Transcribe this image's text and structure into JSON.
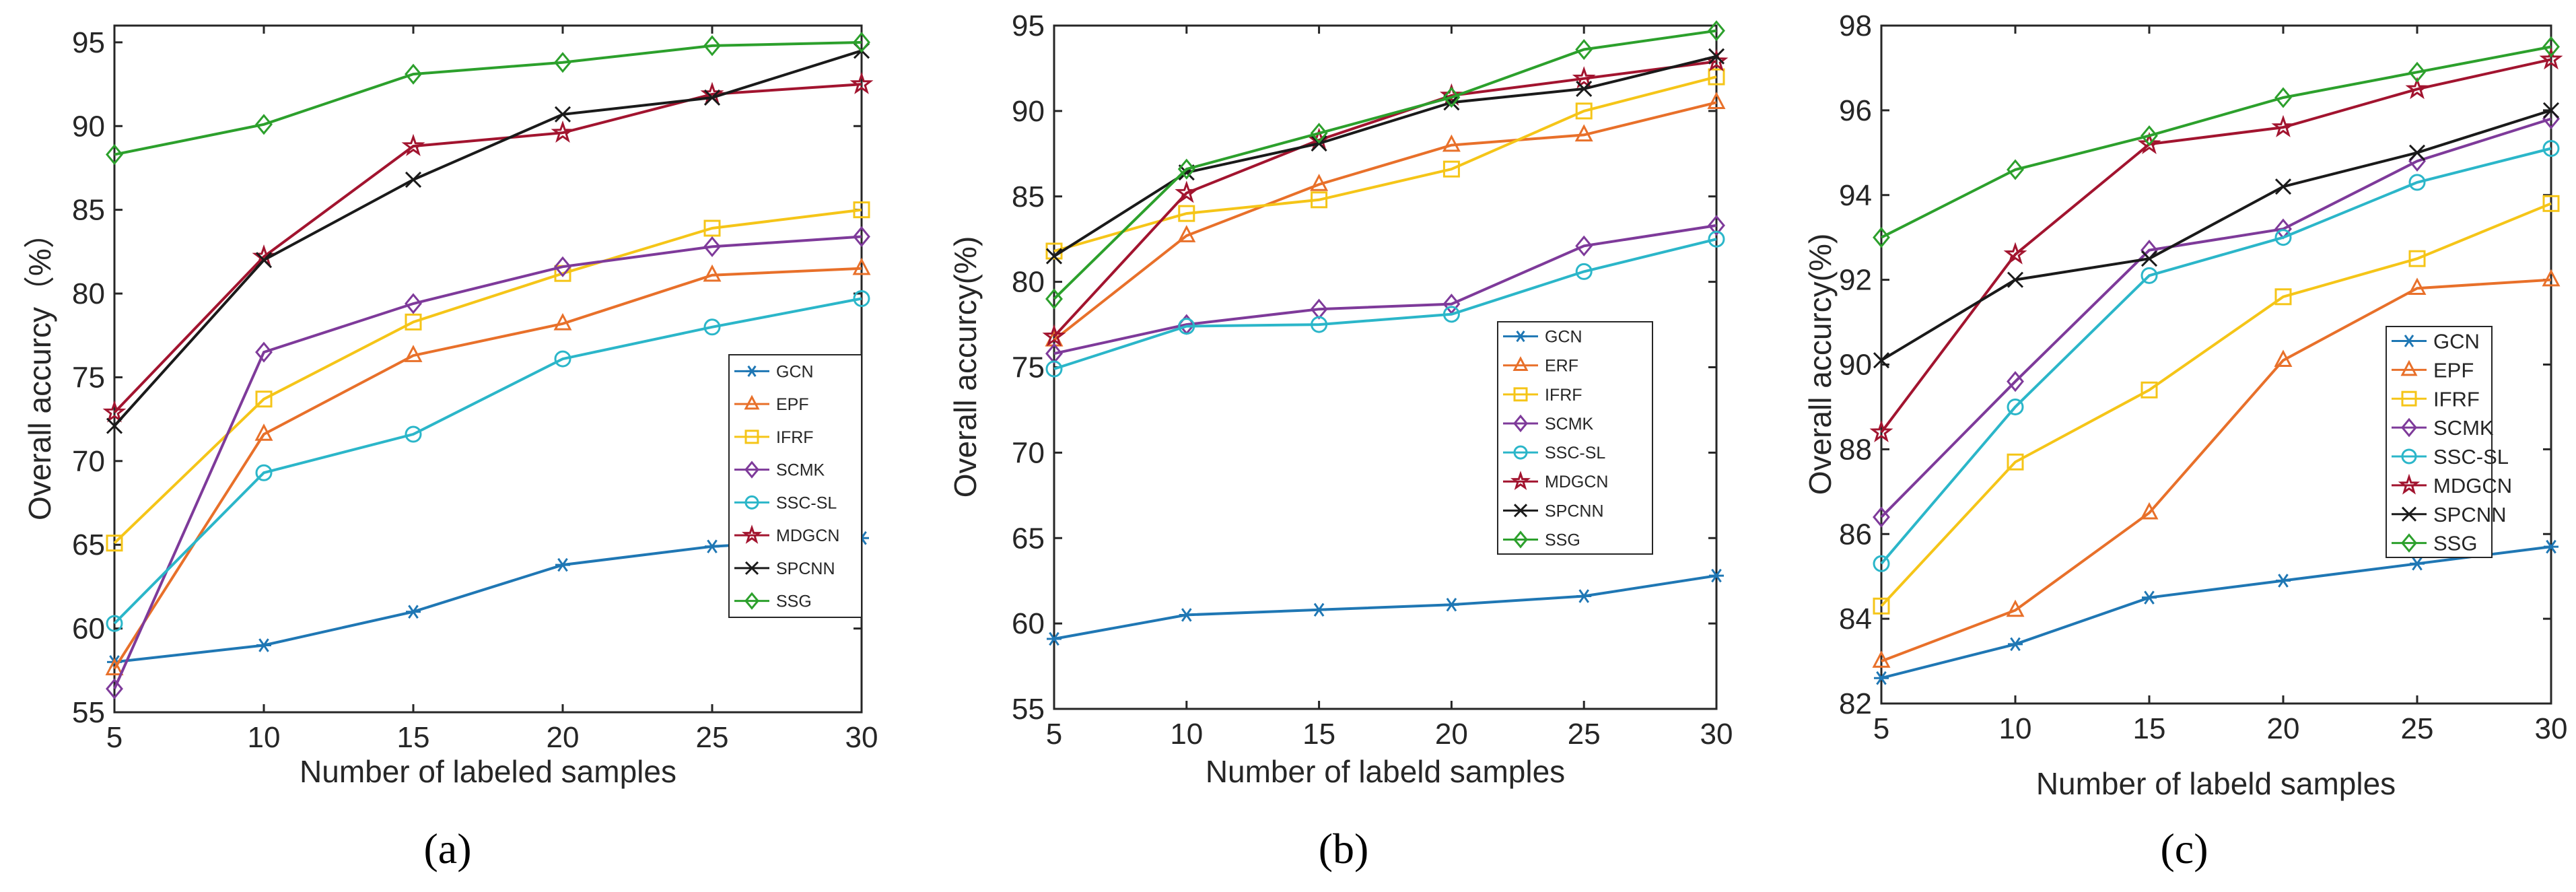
{
  "palette": {
    "GCN": "#1f77b4",
    "EPF": "#e8702a",
    "ERF": "#e8702a",
    "IFRF": "#f5c518",
    "SCMK": "#7e3a9a",
    "SSC-SL": "#2bb6c9",
    "MDGCN": "#a2142f",
    "SPCNN": "#1a1a1a",
    "SSG": "#2ca02c"
  },
  "markers": {
    "GCN": "asterisk",
    "EPF": "triangle",
    "ERF": "triangle",
    "IFRF": "square",
    "SCMK": "diamond",
    "SSC-SL": "circle",
    "MDGCN": "star",
    "SPCNN": "cross",
    "SSG": "diamond"
  },
  "chart_data": [
    {
      "panel": "a",
      "caption": "(a)",
      "type": "line",
      "xlabel": "Number of labeled samples",
      "ylabel": "Overall accurcy（%）",
      "xlim": [
        5,
        30
      ],
      "ylim": [
        55,
        96
      ],
      "xticks": [
        5,
        10,
        15,
        20,
        25,
        30
      ],
      "yticks": [
        55,
        60,
        65,
        70,
        75,
        80,
        85,
        90,
        95
      ],
      "legend_position": "bottom-right",
      "x": [
        5,
        10,
        15,
        20,
        25,
        30
      ],
      "series": [
        {
          "name": "GCN",
          "values": [
            58.0,
            59.0,
            61.0,
            63.8,
            64.9,
            65.4
          ]
        },
        {
          "name": "EPF",
          "values": [
            57.6,
            71.6,
            76.3,
            78.2,
            81.1,
            81.5
          ]
        },
        {
          "name": "IFRF",
          "values": [
            65.1,
            73.7,
            78.3,
            81.2,
            83.9,
            85.0
          ]
        },
        {
          "name": "SCMK",
          "values": [
            56.4,
            76.5,
            79.4,
            81.6,
            82.8,
            83.4
          ]
        },
        {
          "name": "SSC-SL",
          "values": [
            60.3,
            69.3,
            71.6,
            76.1,
            78.0,
            79.7
          ]
        },
        {
          "name": "MDGCN",
          "values": [
            72.9,
            82.2,
            88.8,
            89.6,
            91.9,
            92.5
          ]
        },
        {
          "name": "SPCNN",
          "values": [
            72.1,
            82.0,
            86.8,
            90.7,
            91.7,
            94.5
          ]
        },
        {
          "name": "SSG",
          "values": [
            88.3,
            90.1,
            93.1,
            93.8,
            94.8,
            95.0
          ]
        }
      ]
    },
    {
      "panel": "b",
      "caption": "(b)",
      "type": "line",
      "xlabel": "Number of labeld samples",
      "ylabel": "Overall accurcy(%)",
      "xlim": [
        5,
        30
      ],
      "ylim": [
        55,
        95
      ],
      "xticks": [
        5,
        10,
        15,
        20,
        25,
        30
      ],
      "yticks": [
        55,
        60,
        65,
        70,
        75,
        80,
        85,
        90,
        95
      ],
      "legend_position": "bottom-right",
      "x": [
        5,
        10,
        15,
        20,
        25,
        30
      ],
      "series": [
        {
          "name": "GCN",
          "values": [
            59.1,
            60.5,
            60.8,
            61.1,
            61.6,
            62.8
          ]
        },
        {
          "name": "ERF",
          "values": [
            76.6,
            82.7,
            85.7,
            88.0,
            88.6,
            90.5
          ]
        },
        {
          "name": "IFRF",
          "values": [
            81.8,
            84.0,
            84.8,
            86.6,
            90.0,
            92.0
          ]
        },
        {
          "name": "SCMK",
          "values": [
            75.8,
            77.5,
            78.4,
            78.7,
            82.1,
            83.3
          ]
        },
        {
          "name": "SSC-SL",
          "values": [
            74.9,
            77.4,
            77.5,
            78.1,
            80.6,
            82.5
          ]
        },
        {
          "name": "MDGCN",
          "values": [
            76.8,
            85.2,
            88.3,
            90.9,
            91.9,
            92.9
          ]
        },
        {
          "name": "SPCNN",
          "values": [
            81.5,
            86.4,
            88.1,
            90.5,
            91.3,
            93.2
          ]
        },
        {
          "name": "SSG",
          "values": [
            79.0,
            86.6,
            88.7,
            90.8,
            93.6,
            94.7
          ]
        }
      ]
    },
    {
      "panel": "c",
      "caption": "(c)",
      "type": "line",
      "xlabel": "Number of labeld samples",
      "ylabel": "Overall accurcy(%)",
      "xlim": [
        5,
        30
      ],
      "ylim": [
        82,
        98
      ],
      "xticks": [
        5,
        10,
        15,
        20,
        25,
        30
      ],
      "yticks": [
        82,
        84,
        86,
        88,
        90,
        92,
        94,
        96,
        98
      ],
      "legend_position": "bottom-right",
      "x": [
        5,
        10,
        15,
        20,
        25,
        30
      ],
      "series": [
        {
          "name": "GCN",
          "values": [
            82.6,
            83.4,
            84.5,
            84.9,
            85.3,
            85.7
          ]
        },
        {
          "name": "EPF",
          "values": [
            83.0,
            84.2,
            86.5,
            90.1,
            91.8,
            92.0
          ]
        },
        {
          "name": "IFRF",
          "values": [
            84.3,
            87.7,
            89.4,
            91.6,
            92.5,
            93.8
          ]
        },
        {
          "name": "SCMK",
          "values": [
            86.4,
            89.6,
            92.7,
            93.2,
            94.8,
            95.8
          ]
        },
        {
          "name": "SSC-SL",
          "values": [
            85.3,
            89.0,
            92.1,
            93.0,
            94.3,
            95.1
          ]
        },
        {
          "name": "MDGCN",
          "values": [
            88.4,
            92.6,
            95.2,
            95.6,
            96.5,
            97.2
          ]
        },
        {
          "name": "SPCNN",
          "values": [
            90.1,
            92.0,
            92.5,
            94.2,
            95.0,
            96.0
          ]
        },
        {
          "name": "SSG",
          "values": [
            93.0,
            94.6,
            95.4,
            96.3,
            96.9,
            97.5
          ]
        }
      ]
    }
  ]
}
